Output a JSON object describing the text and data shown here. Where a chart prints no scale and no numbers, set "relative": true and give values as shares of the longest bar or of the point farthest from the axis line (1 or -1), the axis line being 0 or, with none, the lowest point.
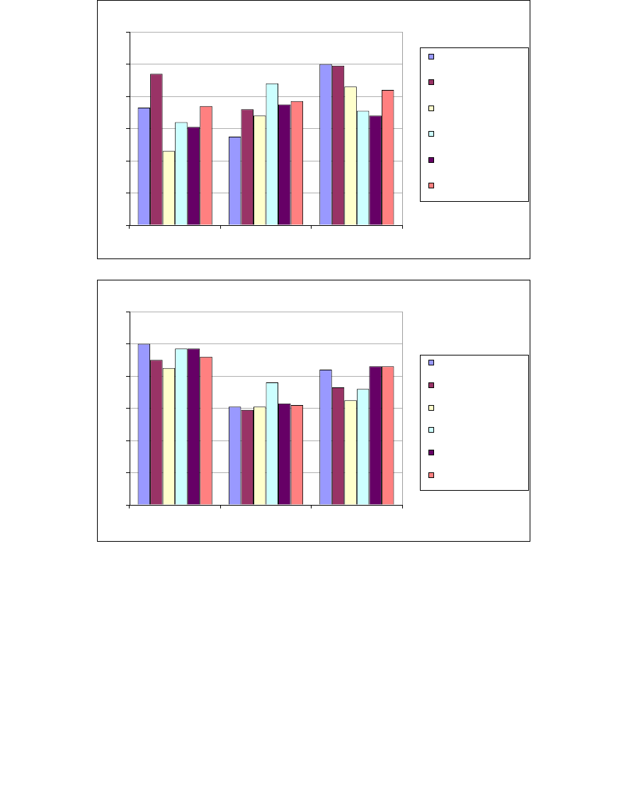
{
  "chart_data": [
    {
      "type": "bar",
      "relative": true,
      "categories": [
        null,
        null,
        null
      ],
      "series": [
        {
          "color": "#9999ff",
          "values": [
            0.73,
            0.55,
            1
          ]
        },
        {
          "color": "#993366",
          "values": [
            0.94,
            0.72,
            0.99
          ]
        },
        {
          "color": "#ffffcc",
          "values": [
            0.46,
            0.68,
            0.86
          ]
        },
        {
          "color": "#ccffff",
          "values": [
            0.64,
            0.88,
            0.71
          ]
        },
        {
          "color": "#660066",
          "values": [
            0.61,
            0.75,
            0.68
          ]
        },
        {
          "color": "#ff8080",
          "values": [
            0.74,
            0.77,
            0.84
          ]
        }
      ],
      "grid": "y",
      "tick_labels": false
    },
    {
      "type": "bar",
      "relative": true,
      "categories": [
        null,
        null,
        null
      ],
      "series": [
        {
          "color": "#9999ff",
          "values": [
            1,
            0.61,
            0.84
          ]
        },
        {
          "color": "#993366",
          "values": [
            0.9,
            0.59,
            0.73
          ]
        },
        {
          "color": "#ffffcc",
          "values": [
            0.85,
            0.61,
            0.65
          ]
        },
        {
          "color": "#ccffff",
          "values": [
            0.97,
            0.76,
            0.72
          ]
        },
        {
          "color": "#660066",
          "values": [
            0.97,
            0.63,
            0.86
          ]
        },
        {
          "color": "#ff8080",
          "values": [
            0.92,
            0.62,
            0.86
          ]
        }
      ],
      "grid": "y",
      "tick_labels": false
    }
  ]
}
